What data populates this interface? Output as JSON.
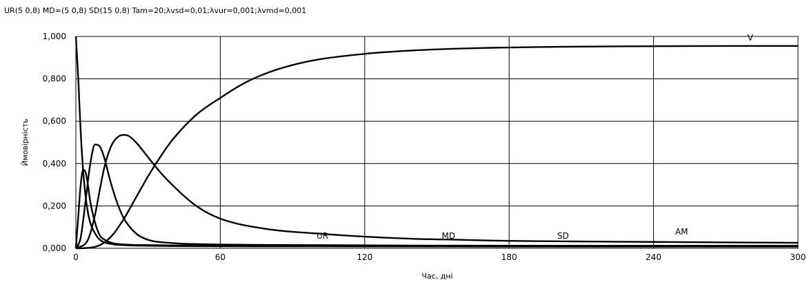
{
  "chart_data": {
    "type": "line",
    "title": "UR(5 0,8)  MD=(5 0,8) SD(15 0,8) Tam=20;λvsd=0,01;λvur=0,001;λvmd=0,001",
    "xlabel": "Час, дні",
    "ylabel": "Ймовірність",
    "xlim": [
      0,
      300
    ],
    "ylim": [
      0,
      1
    ],
    "x_ticks": [
      "0",
      "60",
      "120",
      "180",
      "240",
      "300"
    ],
    "y_ticks": [
      "0,000",
      "0,200",
      "0,400",
      "0,600",
      "0,800",
      "1,000"
    ],
    "grid": true,
    "line_color": "#000000",
    "series": [
      {
        "name": "V",
        "x": [
          0,
          5,
          10,
          15,
          20,
          25,
          30,
          35,
          40,
          50,
          60,
          70,
          80,
          90,
          100,
          120,
          140,
          160,
          180,
          200,
          240,
          280,
          300
        ],
        "y": [
          0,
          0.002,
          0.015,
          0.06,
          0.14,
          0.24,
          0.34,
          0.43,
          0.51,
          0.63,
          0.71,
          0.78,
          0.83,
          0.865,
          0.89,
          0.918,
          0.934,
          0.943,
          0.948,
          0.951,
          0.954,
          0.955,
          0.955
        ],
        "label_x": 279,
        "label_y": 0.98
      },
      {
        "name": "UR",
        "x": [
          0,
          1,
          2,
          3,
          4,
          5,
          6,
          8,
          10,
          12,
          15,
          20,
          30,
          50,
          100,
          200,
          300
        ],
        "y": [
          0,
          0.15,
          0.3,
          0.37,
          0.36,
          0.3,
          0.22,
          0.12,
          0.06,
          0.04,
          0.025,
          0.018,
          0.015,
          0.013,
          0.012,
          0.011,
          0.011
        ],
        "label_x": 100,
        "label_y": 0.045
      },
      {
        "name": "MD",
        "x": [
          0,
          2,
          4,
          6,
          8,
          10,
          12,
          14,
          17,
          20,
          25,
          30,
          40,
          50,
          100,
          200,
          300
        ],
        "y": [
          0,
          0.05,
          0.22,
          0.4,
          0.49,
          0.48,
          0.42,
          0.33,
          0.22,
          0.14,
          0.07,
          0.04,
          0.025,
          0.02,
          0.015,
          0.012,
          0.012
        ],
        "label_x": 152,
        "label_y": 0.045
      },
      {
        "name": "SD",
        "x": [
          0,
          5,
          8,
          10,
          12,
          15,
          18,
          20,
          22,
          25,
          30,
          35,
          40,
          50,
          60,
          80,
          100,
          120,
          140,
          160,
          180,
          200,
          240,
          300
        ],
        "y": [
          0,
          0.04,
          0.16,
          0.28,
          0.39,
          0.49,
          0.53,
          0.535,
          0.53,
          0.5,
          0.43,
          0.36,
          0.3,
          0.2,
          0.14,
          0.09,
          0.07,
          0.055,
          0.045,
          0.04,
          0.035,
          0.033,
          0.03,
          0.026
        ],
        "label_x": 200,
        "label_y": 0.045
      },
      {
        "name": "AM",
        "x": [
          0,
          1,
          2,
          3,
          4,
          5,
          6,
          8,
          10,
          15,
          20,
          30,
          50,
          100,
          200,
          300
        ],
        "y": [
          1,
          0.8,
          0.55,
          0.37,
          0.25,
          0.17,
          0.12,
          0.07,
          0.04,
          0.02,
          0.015,
          0.012,
          0.01,
          0.009,
          0.008,
          0.008
        ],
        "label_x": 249,
        "label_y": 0.065
      }
    ]
  }
}
